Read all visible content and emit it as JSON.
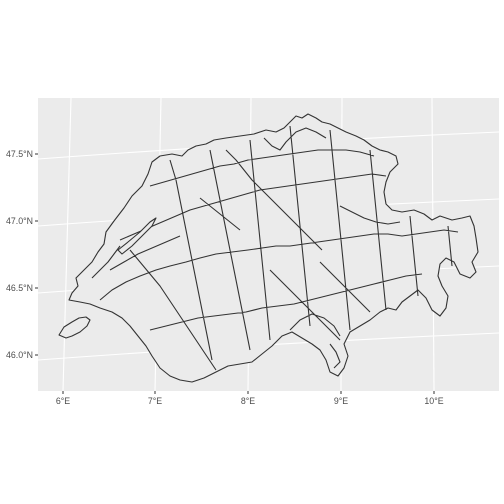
{
  "map": {
    "type": "choropleth-outline",
    "projection": "curved graticule",
    "x_ticks": [
      "6°E",
      "7°E",
      "8°E",
      "9°E",
      "10°E"
    ],
    "y_ticks": [
      "46.0°N",
      "46.5°N",
      "47.0°N",
      "47.5°N"
    ],
    "colors": {
      "panel_background": "#ebebeb",
      "gridline": "#ffffff",
      "region_fill": "#ebebeb",
      "region_stroke": "#333333",
      "tick_text": "#4d4d4d"
    }
  },
  "chart_data": {
    "type": "map",
    "x_ticks": [
      "6°E",
      "7°E",
      "8°E",
      "9°E",
      "10°E"
    ],
    "y_ticks": [
      "46.0°N",
      "46.5°N",
      "47.0°N",
      "47.5°N"
    ],
    "xlim": [
      5.85,
      10.6
    ],
    "ylim": [
      45.75,
      47.85
    ],
    "grid": true,
    "legend": "none"
  }
}
